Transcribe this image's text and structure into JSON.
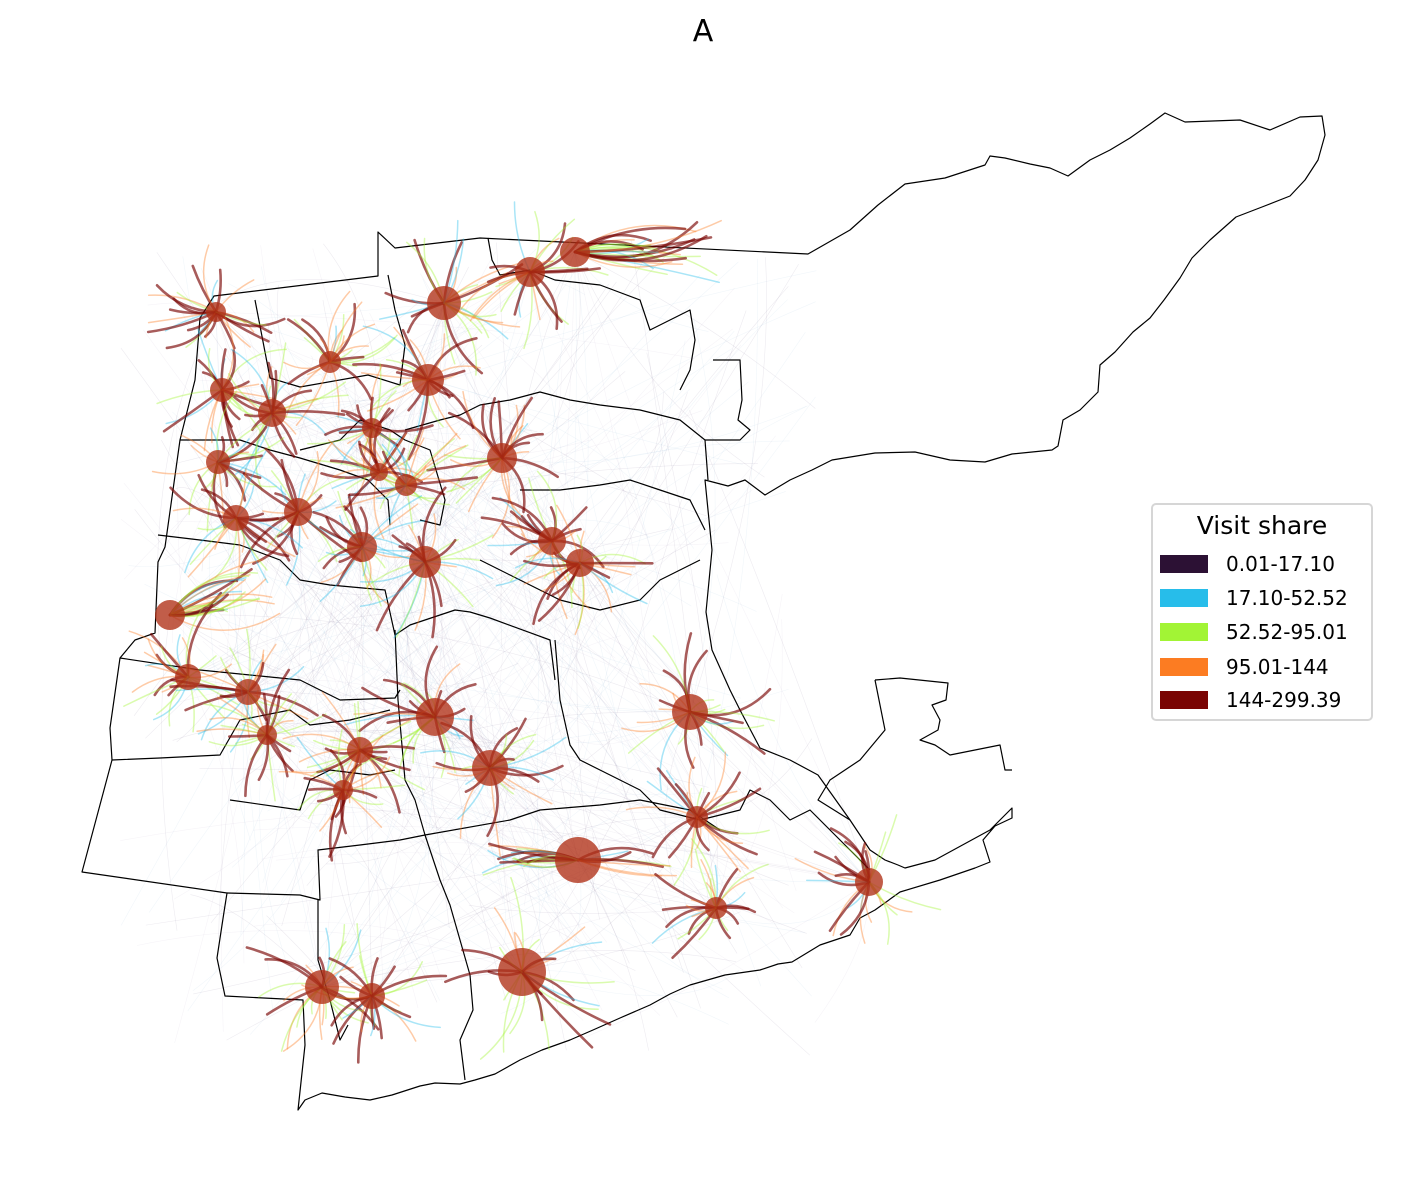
{
  "title": "A",
  "legend": {
    "title": "Visit share",
    "items": [
      {
        "label": "0.01-17.10",
        "color": "#2c1134"
      },
      {
        "label": "17.10-52.52",
        "color": "#27bdea"
      },
      {
        "label": "52.52-95.01",
        "color": "#a2f435"
      },
      {
        "label": "95.01-144",
        "color": "#fc7c22"
      },
      {
        "label": "144-299.39",
        "color": "#7a0403"
      }
    ]
  },
  "colors": {
    "hub_fill": "#b03016",
    "boundary": "#000000",
    "background_flow": "#6e5a85"
  }
}
